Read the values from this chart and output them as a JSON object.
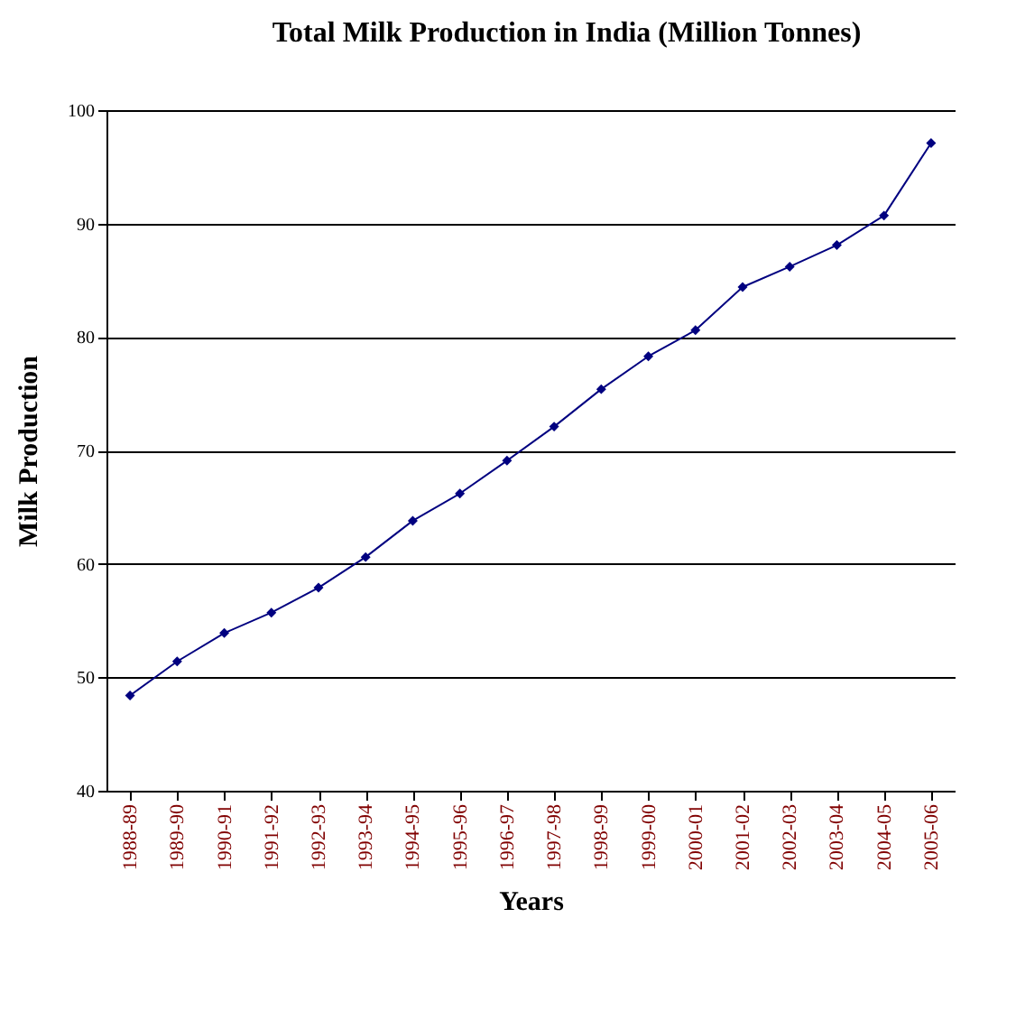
{
  "chart_data": {
    "type": "line",
    "title": "Total Milk Production in India (Million Tonnes)",
    "xlabel": "Years",
    "ylabel": "Milk Production",
    "categories": [
      "1988-89",
      "1989-90",
      "1990-91",
      "1991-92",
      "1992-93",
      "1993-94",
      "1994-95",
      "1995-96",
      "1996-97",
      "1997-98",
      "1998-99",
      "1999-00",
      "2000-01",
      "2001-02",
      "2002-03",
      "2003-04",
      "2004-05",
      "2005-06"
    ],
    "series": [
      {
        "color": "#000080",
        "values": [
          48.4,
          51.4,
          53.9,
          55.7,
          57.9,
          60.6,
          63.8,
          66.2,
          69.1,
          72.1,
          75.4,
          78.3,
          80.6,
          84.4,
          86.2,
          88.1,
          90.7,
          97.1
        ]
      }
    ],
    "ylim": [
      40,
      100
    ],
    "yticks": [
      40,
      50,
      60,
      70,
      80,
      90,
      100
    ],
    "grid": "y",
    "legend": false,
    "marker": "diamond",
    "line_style": "solid"
  }
}
